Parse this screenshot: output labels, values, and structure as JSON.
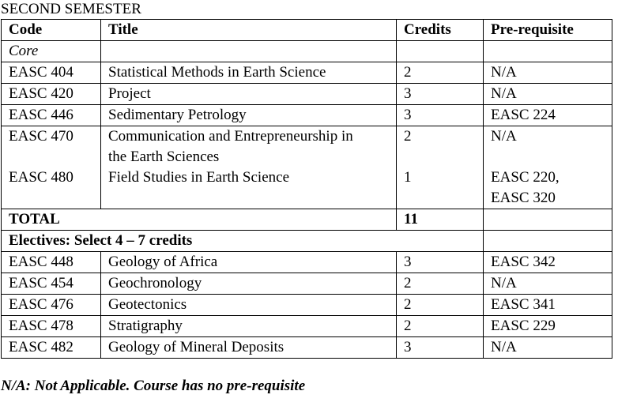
{
  "semester_title": "SECOND SEMESTER",
  "headers": {
    "code": "Code",
    "title": "Title",
    "credits": "Credits",
    "prereq": "Pre-requisite"
  },
  "core_label": "Core",
  "core_courses": [
    {
      "code": "EASC 404",
      "title": "Statistical Methods in Earth Science",
      "credits": "2",
      "prereq": "N/A"
    },
    {
      "code": "EASC 420",
      "title": "Project",
      "credits": "3",
      "prereq": "N/A"
    },
    {
      "code": "EASC 446",
      "title": "Sedimentary Petrology",
      "credits": "3",
      "prereq": "EASC 224"
    },
    {
      "code": "EASC 470",
      "title_line1": "Communication and Entrepreneurship in",
      "title_line2": "the Earth Sciences",
      "credits": "2",
      "prereq": "N/A"
    },
    {
      "code": "EASC 480",
      "title": "Field Studies in Earth Science",
      "credits": "1",
      "prereq_line1": "EASC 220,",
      "prereq_line2": "EASC 320"
    }
  ],
  "total": {
    "label": "TOTAL",
    "credits": "11"
  },
  "electives_label": "Electives: Select 4 – 7 credits",
  "electives": [
    {
      "code": "EASC 448",
      "title": "Geology of Africa",
      "credits": "3",
      "prereq": "EASC 342"
    },
    {
      "code": "EASC 454",
      "title": "Geochronology",
      "credits": "2",
      "prereq": "N/A"
    },
    {
      "code": "EASC 476",
      "title": "Geotectonics",
      "credits": "2",
      "prereq": "EASC 341"
    },
    {
      "code": "EASC 478",
      "title": "Stratigraphy",
      "credits": "2",
      "prereq": "EASC 229"
    },
    {
      "code": "EASC 482",
      "title": "Geology of Mineral Deposits",
      "credits": "3",
      "prereq": "N/A"
    }
  ],
  "footnote": "N/A: Not Applicable. Course has no pre-requisite"
}
